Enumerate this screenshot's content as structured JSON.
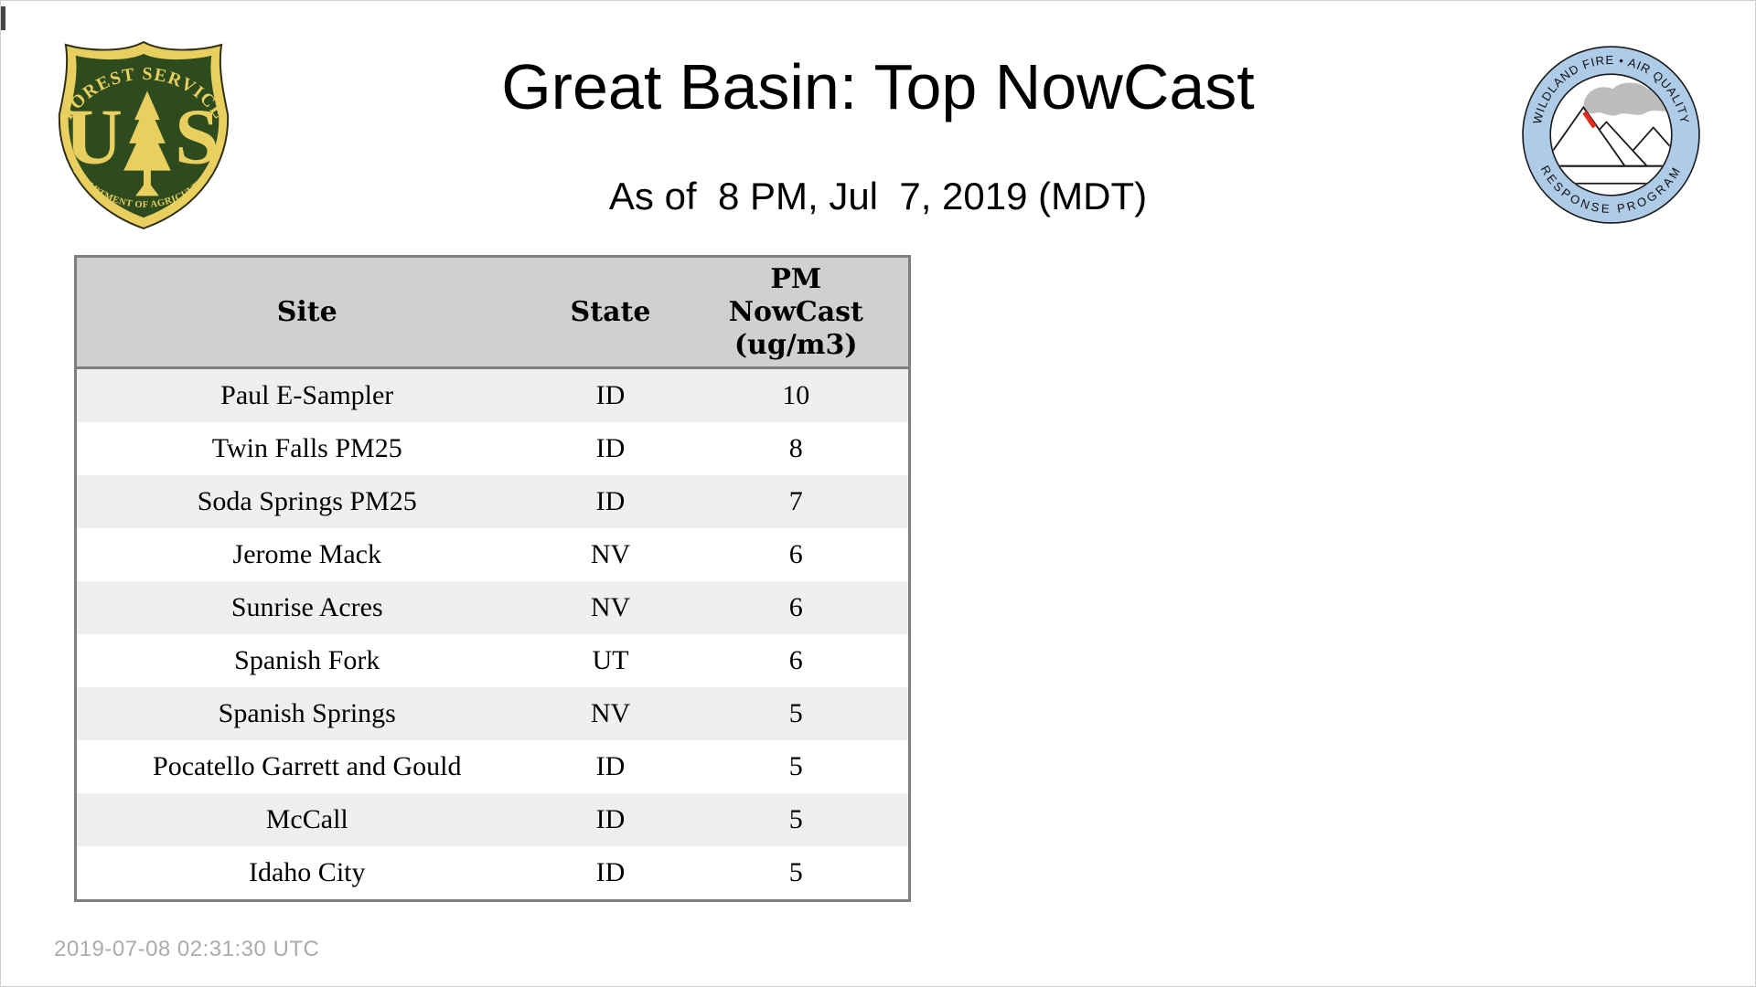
{
  "page": {
    "title": "Great Basin: Top NowCast",
    "subtitle": "As of  8 PM, Jul  7, 2019 (MDT)",
    "footer_timestamp": "2019-07-08 02:31:30 UTC",
    "background": "#FFFFFF"
  },
  "logos": {
    "forest_service": {
      "arc_top": "FOREST SERVICE",
      "monogram_left": "U",
      "monogram_right": "S",
      "arc_bottom": "DEPARTMENT OF AGRICULTURE",
      "colors": {
        "shield_green": "#2E4B1E",
        "gold": "#E9CF5F",
        "outline": "#2F2F15"
      }
    },
    "air_quality_program": {
      "arc_top": "WILDLAND FIRE • AIR QUALITY",
      "arc_bottom": "RESPONSE PROGRAM",
      "colors": {
        "ring_blue": "#AECBE8",
        "smoke_gray": "#BDBDBD",
        "fire_red": "#E8291C",
        "line_black": "#1A1A1A"
      }
    }
  },
  "table": {
    "header": {
      "site": "Site",
      "state": "State",
      "pm": "PM\nNowCast\n(ug/m3)"
    },
    "rows": [
      {
        "site": "Paul E-Sampler",
        "state": "ID",
        "value": "10"
      },
      {
        "site": "Twin Falls PM25",
        "state": "ID",
        "value": "8"
      },
      {
        "site": "Soda Springs PM25",
        "state": "ID",
        "value": "7"
      },
      {
        "site": "Jerome Mack",
        "state": "NV",
        "value": "6"
      },
      {
        "site": "Sunrise Acres",
        "state": "NV",
        "value": "6"
      },
      {
        "site": "Spanish Fork",
        "state": "UT",
        "value": "6"
      },
      {
        "site": "Spanish Springs",
        "state": "NV",
        "value": "5"
      },
      {
        "site": "Pocatello Garrett and Gould",
        "state": "ID",
        "value": "5"
      },
      {
        "site": "McCall",
        "state": "ID",
        "value": "5"
      },
      {
        "site": "Idaho City",
        "state": "ID",
        "value": "5"
      }
    ],
    "style": {
      "header_bg": "#D0D0D0",
      "row_alt_bg": "#EFEFEF",
      "border": "#7F7F7F"
    }
  },
  "chart_data": {
    "type": "table",
    "title": "Great Basin: Top NowCast",
    "subtitle": "As of  8 PM, Jul  7, 2019 (MDT)",
    "columns": [
      "Site",
      "State",
      "PM NowCast (ug/m3)"
    ],
    "rows": [
      [
        "Paul E-Sampler",
        "ID",
        10
      ],
      [
        "Twin Falls PM25",
        "ID",
        8
      ],
      [
        "Soda Springs PM25",
        "ID",
        7
      ],
      [
        "Jerome Mack",
        "NV",
        6
      ],
      [
        "Sunrise Acres",
        "NV",
        6
      ],
      [
        "Spanish Fork",
        "UT",
        6
      ],
      [
        "Spanish Springs",
        "NV",
        5
      ],
      [
        "Pocatello Garrett and Gould",
        "ID",
        5
      ],
      [
        "McCall",
        "ID",
        5
      ],
      [
        "Idaho City",
        "ID",
        5
      ]
    ],
    "footer": "2019-07-08 02:31:30 UTC"
  }
}
